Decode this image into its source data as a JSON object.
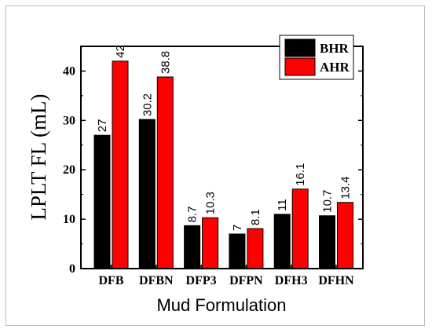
{
  "chart_data": {
    "type": "bar",
    "categories": [
      "DFB",
      "DFBN",
      "DFP3",
      "DFPN",
      "DFH3",
      "DFHN"
    ],
    "series": [
      {
        "name": "BHR",
        "values": [
          27,
          30.2,
          8.7,
          7,
          11,
          10.7
        ],
        "labels": [
          "27",
          "30.2",
          "8.7",
          "7",
          "11",
          "10.7"
        ],
        "color": "#000000"
      },
      {
        "name": "AHR",
        "values": [
          42,
          38.8,
          10.3,
          8.1,
          16.1,
          13.4
        ],
        "labels": [
          "42",
          "38.8",
          "10.3",
          "8.1",
          "16.1",
          "13.4"
        ],
        "color": "#ff0000"
      }
    ],
    "xlabel": "Mud Formulation",
    "ylabel": "LPLT FL (mL)",
    "ylim": [
      0,
      45
    ],
    "yticks": [
      0,
      10,
      20,
      30,
      40
    ],
    "ytick_labels": [
      "0",
      "10",
      "20",
      "30",
      "40"
    ],
    "legend_position": "top-right",
    "grid": false
  }
}
